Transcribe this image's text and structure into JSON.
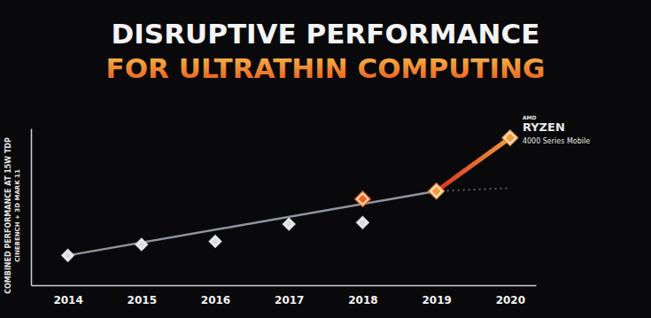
{
  "chart_data": {
    "type": "line",
    "title": "DISRUPTIVE PERFORMANCE",
    "subtitle": "FOR ULTRATHIN COMPUTING",
    "ylabel": [
      "COMBINED PERFORMANCE AT 15W TDP",
      "CINEBENCH + 3D MARK 11"
    ],
    "annotations": [
      "AMD",
      "RYZEN",
      "4000 Series Mobile"
    ],
    "xlim": [
      2013.5,
      2020.35
    ],
    "xticks": [
      2014,
      2015,
      2016,
      2017,
      2018,
      2019,
      2020
    ],
    "ylim": [
      0,
      100
    ],
    "tick_labels": "x",
    "series": [
      {
        "type": "scatter",
        "marker": "diamond",
        "color": "#d9dadd",
        "x": [
          2014,
          2015,
          2016,
          2017,
          2018
        ],
        "values": [
          19,
          26,
          28,
          39,
          40
        ]
      },
      {
        "type": "line",
        "color": "#8e939c",
        "x": [
          2014,
          2019
        ],
        "values": [
          19,
          60
        ]
      },
      {
        "type": "line",
        "line_style": "dotted",
        "color": "#5a5d63",
        "x": [
          2019,
          2020
        ],
        "values": [
          60,
          62
        ]
      },
      {
        "type": "scatter",
        "marker": "diamond",
        "color": "#e8661e",
        "x": [
          2018
        ],
        "values": [
          55
        ]
      },
      {
        "type": "line",
        "marker": "diamond",
        "color": "#f39a3a",
        "x": [
          2019,
          2020
        ],
        "values": [
          60,
          94
        ]
      }
    ]
  }
}
